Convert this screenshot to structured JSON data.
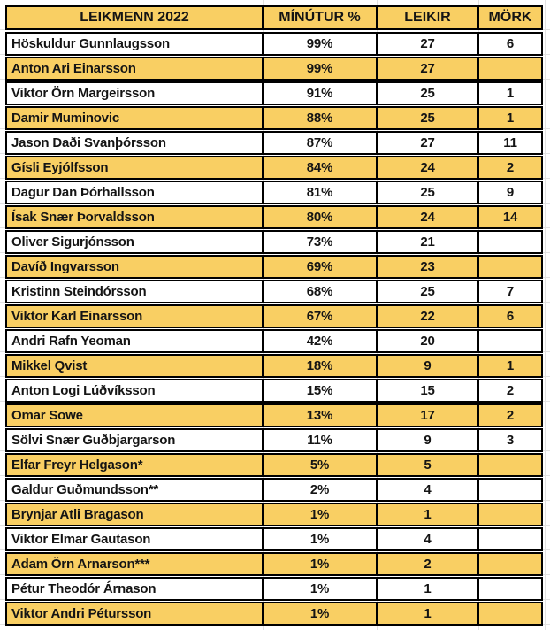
{
  "chart_data": {
    "type": "table",
    "title": "LEIKMENN 2022",
    "columns": [
      "LEIKMENN 2022",
      "MÍNÚTUR %",
      "LEIKIR",
      "MÖRK"
    ],
    "rows": [
      [
        "Höskuldur Gunnlaugsson",
        "99%",
        "27",
        "6"
      ],
      [
        "Anton Ari Einarsson",
        "99%",
        "27",
        ""
      ],
      [
        "Viktor Örn Margeirsson",
        "91%",
        "25",
        "1"
      ],
      [
        "Damir Muminovic",
        "88%",
        "25",
        "1"
      ],
      [
        "Jason Daði Svanþórsson",
        "87%",
        "27",
        "11"
      ],
      [
        "Gísli Eyjólfsson",
        "84%",
        "24",
        "2"
      ],
      [
        "Dagur Dan Þórhallsson",
        "81%",
        "25",
        "9"
      ],
      [
        "Ísak Snær Þorvaldsson",
        "80%",
        "24",
        "14"
      ],
      [
        "Oliver Sigurjónsson",
        "73%",
        "21",
        ""
      ],
      [
        "Davíð Ingvarsson",
        "69%",
        "23",
        ""
      ],
      [
        "Kristinn Steindórsson",
        "68%",
        "25",
        "7"
      ],
      [
        "Viktor Karl Einarsson",
        "67%",
        "22",
        "6"
      ],
      [
        "Andri Rafn Yeoman",
        "42%",
        "20",
        ""
      ],
      [
        "Mikkel Qvist",
        "18%",
        "9",
        "1"
      ],
      [
        "Anton Logi Lúðvíksson",
        "15%",
        "15",
        "2"
      ],
      [
        "Omar Sowe",
        "13%",
        "17",
        "2"
      ],
      [
        "Sölvi Snær Guðbjargarson",
        "11%",
        "9",
        "3"
      ],
      [
        "Elfar Freyr Helgason*",
        "5%",
        "5",
        ""
      ],
      [
        "Galdur Guðmundsson**",
        "2%",
        "4",
        ""
      ],
      [
        "Brynjar Atli Bragason",
        "1%",
        "1",
        ""
      ],
      [
        "Viktor Elmar Gautason",
        "1%",
        "4",
        ""
      ],
      [
        "Adam Örn Arnarson***",
        "1%",
        "2",
        ""
      ],
      [
        "Pétur Theodór Árnason",
        "1%",
        "1",
        ""
      ],
      [
        "Viktor Andri Pétursson",
        "1%",
        "1",
        ""
      ]
    ],
    "layout": {
      "stripe_pattern": "header gold, then alternating white/gold rows",
      "legend_position": "none",
      "grid": "thick black cell borders, faint spreadsheet gridlines in margins"
    }
  },
  "style": {
    "page_bg": "#FFFFFF",
    "header_fill": "#F9CF63",
    "stripe_fill": "#F9CF63",
    "row_fill": "#FFFFFF",
    "border_color": "#000000",
    "text_color": "#141414",
    "gridline_color": "#E2E2E2"
  }
}
